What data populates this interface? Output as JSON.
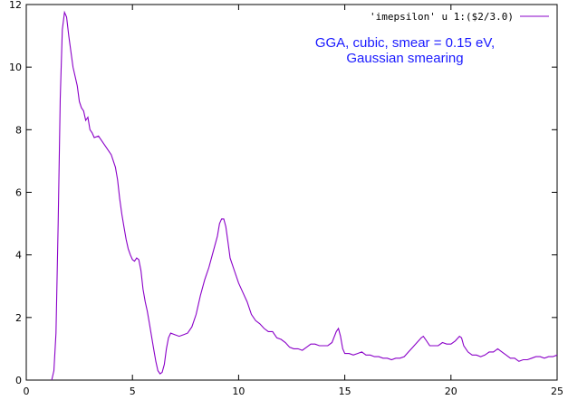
{
  "chart_data": {
    "type": "line",
    "xlim": [
      0,
      25
    ],
    "ylim": [
      0,
      12
    ],
    "xticks": [
      0,
      5,
      10,
      15,
      20,
      25
    ],
    "yticks": [
      0,
      2,
      4,
      6,
      8,
      10,
      12
    ],
    "grid": false,
    "legend_position": "top-right",
    "legend": [
      "'imepsilon' u 1:($2/3.0)"
    ],
    "annotation": {
      "lines": [
        "GGA, cubic, smear = 0.15 eV,",
        "Gaussian smearing"
      ],
      "color": "#1a1aff"
    },
    "series": [
      {
        "name": "'imepsilon' u 1:($2/3.0)",
        "color": "#8a00c8",
        "points": [
          [
            1.2,
            0
          ],
          [
            1.3,
            0.3
          ],
          [
            1.4,
            1.5
          ],
          [
            1.5,
            5.0
          ],
          [
            1.6,
            9.0
          ],
          [
            1.7,
            11.2
          ],
          [
            1.8,
            11.75
          ],
          [
            1.9,
            11.6
          ],
          [
            2.0,
            11.0
          ],
          [
            2.2,
            10.0
          ],
          [
            2.4,
            9.4
          ],
          [
            2.5,
            8.9
          ],
          [
            2.6,
            8.7
          ],
          [
            2.7,
            8.6
          ],
          [
            2.8,
            8.3
          ],
          [
            2.9,
            8.4
          ],
          [
            3.0,
            8.0
          ],
          [
            3.1,
            7.9
          ],
          [
            3.2,
            7.75
          ],
          [
            3.4,
            7.8
          ],
          [
            3.6,
            7.6
          ],
          [
            3.8,
            7.4
          ],
          [
            4.0,
            7.2
          ],
          [
            4.2,
            6.8
          ],
          [
            4.3,
            6.4
          ],
          [
            4.4,
            5.8
          ],
          [
            4.5,
            5.3
          ],
          [
            4.6,
            4.9
          ],
          [
            4.7,
            4.5
          ],
          [
            4.8,
            4.2
          ],
          [
            4.9,
            4.0
          ],
          [
            5.0,
            3.85
          ],
          [
            5.1,
            3.8
          ],
          [
            5.2,
            3.9
          ],
          [
            5.3,
            3.85
          ],
          [
            5.4,
            3.5
          ],
          [
            5.5,
            2.9
          ],
          [
            5.6,
            2.5
          ],
          [
            5.7,
            2.2
          ],
          [
            5.8,
            1.8
          ],
          [
            5.9,
            1.4
          ],
          [
            6.0,
            1.0
          ],
          [
            6.1,
            0.6
          ],
          [
            6.2,
            0.3
          ],
          [
            6.3,
            0.2
          ],
          [
            6.4,
            0.25
          ],
          [
            6.5,
            0.5
          ],
          [
            6.6,
            1.0
          ],
          [
            6.7,
            1.35
          ],
          [
            6.8,
            1.5
          ],
          [
            7.0,
            1.45
          ],
          [
            7.2,
            1.4
          ],
          [
            7.4,
            1.45
          ],
          [
            7.6,
            1.5
          ],
          [
            7.8,
            1.7
          ],
          [
            8.0,
            2.1
          ],
          [
            8.2,
            2.7
          ],
          [
            8.4,
            3.2
          ],
          [
            8.6,
            3.6
          ],
          [
            8.8,
            4.1
          ],
          [
            9.0,
            4.6
          ],
          [
            9.1,
            5.0
          ],
          [
            9.2,
            5.15
          ],
          [
            9.3,
            5.15
          ],
          [
            9.4,
            4.9
          ],
          [
            9.5,
            4.4
          ],
          [
            9.6,
            3.9
          ],
          [
            9.8,
            3.5
          ],
          [
            10.0,
            3.1
          ],
          [
            10.2,
            2.8
          ],
          [
            10.4,
            2.5
          ],
          [
            10.6,
            2.1
          ],
          [
            10.8,
            1.9
          ],
          [
            11.0,
            1.8
          ],
          [
            11.2,
            1.65
          ],
          [
            11.4,
            1.55
          ],
          [
            11.6,
            1.55
          ],
          [
            11.8,
            1.35
          ],
          [
            12.0,
            1.3
          ],
          [
            12.2,
            1.2
          ],
          [
            12.4,
            1.05
          ],
          [
            12.6,
            1.0
          ],
          [
            12.8,
            1.0
          ],
          [
            13.0,
            0.95
          ],
          [
            13.2,
            1.05
          ],
          [
            13.4,
            1.15
          ],
          [
            13.6,
            1.15
          ],
          [
            13.8,
            1.1
          ],
          [
            14.0,
            1.1
          ],
          [
            14.2,
            1.1
          ],
          [
            14.4,
            1.2
          ],
          [
            14.6,
            1.55
          ],
          [
            14.7,
            1.65
          ],
          [
            14.8,
            1.4
          ],
          [
            14.9,
            1.0
          ],
          [
            15.0,
            0.85
          ],
          [
            15.2,
            0.85
          ],
          [
            15.4,
            0.8
          ],
          [
            15.6,
            0.85
          ],
          [
            15.8,
            0.9
          ],
          [
            16.0,
            0.8
          ],
          [
            16.2,
            0.8
          ],
          [
            16.4,
            0.75
          ],
          [
            16.6,
            0.75
          ],
          [
            16.8,
            0.7
          ],
          [
            17.0,
            0.7
          ],
          [
            17.2,
            0.65
          ],
          [
            17.4,
            0.7
          ],
          [
            17.6,
            0.7
          ],
          [
            17.8,
            0.75
          ],
          [
            18.0,
            0.9
          ],
          [
            18.2,
            1.05
          ],
          [
            18.4,
            1.2
          ],
          [
            18.6,
            1.35
          ],
          [
            18.7,
            1.4
          ],
          [
            18.8,
            1.3
          ],
          [
            19.0,
            1.1
          ],
          [
            19.2,
            1.1
          ],
          [
            19.4,
            1.1
          ],
          [
            19.6,
            1.2
          ],
          [
            19.8,
            1.15
          ],
          [
            20.0,
            1.15
          ],
          [
            20.2,
            1.25
          ],
          [
            20.4,
            1.4
          ],
          [
            20.5,
            1.35
          ],
          [
            20.6,
            1.1
          ],
          [
            20.8,
            0.9
          ],
          [
            21.0,
            0.8
          ],
          [
            21.2,
            0.8
          ],
          [
            21.4,
            0.75
          ],
          [
            21.6,
            0.8
          ],
          [
            21.8,
            0.9
          ],
          [
            22.0,
            0.9
          ],
          [
            22.2,
            1.0
          ],
          [
            22.4,
            0.9
          ],
          [
            22.6,
            0.8
          ],
          [
            22.8,
            0.7
          ],
          [
            23.0,
            0.7
          ],
          [
            23.2,
            0.6
          ],
          [
            23.4,
            0.65
          ],
          [
            23.6,
            0.65
          ],
          [
            23.8,
            0.7
          ],
          [
            24.0,
            0.75
          ],
          [
            24.2,
            0.75
          ],
          [
            24.4,
            0.7
          ],
          [
            24.6,
            0.75
          ],
          [
            24.8,
            0.75
          ],
          [
            25.0,
            0.8
          ]
        ]
      }
    ]
  }
}
